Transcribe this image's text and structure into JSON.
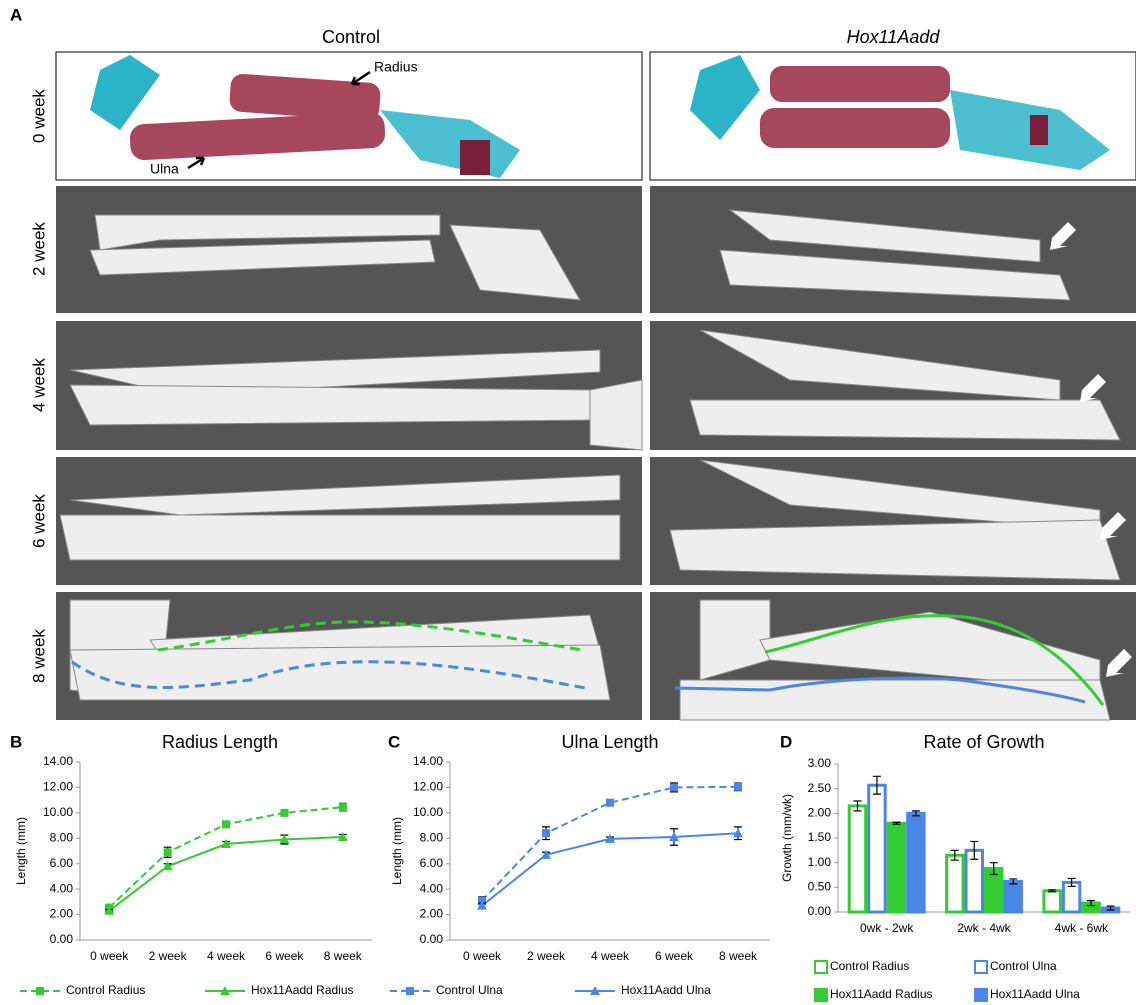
{
  "panel_a": {
    "label": "A",
    "columns": [
      "Control",
      "Hox11Aadd"
    ],
    "rows": [
      "0 week",
      "2 week",
      "4 week",
      "6 week",
      "8 week"
    ],
    "annotations": [
      "Radius",
      "Ulna"
    ]
  },
  "chart_data": [
    {
      "type": "line",
      "panel": "B",
      "title": "Radius Length",
      "y_label": "Length (mm)",
      "categories": [
        "0 week",
        "2 week",
        "4 week",
        "6 week",
        "8 week"
      ],
      "ylim": [
        0,
        14
      ],
      "yticks": [
        {
          "value": 0,
          "label": "0.00"
        },
        {
          "value": 2,
          "label": "2.00"
        },
        {
          "value": 4,
          "label": "4.00"
        },
        {
          "value": 6,
          "label": "6.00"
        },
        {
          "value": 8,
          "label": "8.00"
        },
        {
          "value": 10,
          "label": "10.00"
        },
        {
          "value": 12,
          "label": "12.00"
        },
        {
          "value": 14,
          "label": "14.00"
        }
      ],
      "series": [
        {
          "name": "Control Radius",
          "color": "#33cc33",
          "dash": true,
          "marker": "square",
          "values": [
            2.55,
            6.9,
            9.1,
            10.0,
            10.45
          ],
          "errors": [
            0.1,
            0.4,
            0.15,
            0.15,
            0.3
          ]
        },
        {
          "name": "Hox11Aadd Radius",
          "color": "#33cc33",
          "dash": false,
          "marker": "triangle",
          "values": [
            2.3,
            5.8,
            7.55,
            7.9,
            8.1
          ],
          "errors": [
            0.1,
            0.2,
            0.2,
            0.35,
            0.2
          ]
        }
      ]
    },
    {
      "type": "line",
      "panel": "C",
      "title": "Ulna Length",
      "y_label": "Length (mm)",
      "categories": [
        "0 week",
        "2 week",
        "4 week",
        "6 week",
        "8 week"
      ],
      "ylim": [
        0,
        14
      ],
      "yticks": [
        {
          "value": 0,
          "label": "0.00"
        },
        {
          "value": 2,
          "label": "2.00"
        },
        {
          "value": 4,
          "label": "4.00"
        },
        {
          "value": 6,
          "label": "6.00"
        },
        {
          "value": 8,
          "label": "8.00"
        },
        {
          "value": 10,
          "label": "10.00"
        },
        {
          "value": 12,
          "label": "12.00"
        },
        {
          "value": 14,
          "label": "14.00"
        }
      ],
      "series": [
        {
          "name": "Control Ulna",
          "color": "#4a86e8",
          "dash": true,
          "marker": "square",
          "values": [
            3.1,
            8.4,
            10.8,
            12.0,
            12.05
          ],
          "errors": [
            0.3,
            0.5,
            0.15,
            0.35,
            0.3
          ]
        },
        {
          "name": "Hox11Aadd Ulna",
          "color": "#4a86e8",
          "dash": false,
          "marker": "triangle",
          "values": [
            2.7,
            6.7,
            7.95,
            8.1,
            8.4
          ],
          "errors": [
            0.2,
            0.2,
            0.15,
            0.65,
            0.5
          ]
        }
      ]
    },
    {
      "type": "bar",
      "panel": "D",
      "title": "Rate of Growth",
      "y_label": "Growth (mm/wk)",
      "categories": [
        "0wk - 2wk",
        "2wk - 4wk",
        "4wk - 6wk"
      ],
      "ylim": [
        0,
        3
      ],
      "yticks": [
        {
          "value": 0,
          "label": "0.00"
        },
        {
          "value": 0.5,
          "label": "0.50"
        },
        {
          "value": 1,
          "label": "1.00"
        },
        {
          "value": 1.5,
          "label": "1.50"
        },
        {
          "value": 2,
          "label": "2.00"
        },
        {
          "value": 2.5,
          "label": "2.50"
        },
        {
          "value": 3,
          "label": "3.00"
        }
      ],
      "series": [
        {
          "name": "Control Radius",
          "color": "#33cc33",
          "filled": false,
          "values": [
            2.15,
            1.15,
            0.43
          ],
          "errors": [
            0.1,
            0.1,
            0.02
          ]
        },
        {
          "name": "Control Ulna",
          "color": "#4a86e8",
          "filled": false,
          "values": [
            2.57,
            1.25,
            0.6
          ],
          "errors": [
            0.18,
            0.18,
            0.08
          ]
        },
        {
          "name": "Hox11Aadd Radius",
          "color": "#33cc33",
          "filled": true,
          "values": [
            1.8,
            0.88,
            0.18
          ],
          "errors": [
            0.02,
            0.12,
            0.05
          ]
        },
        {
          "name": "Hox11Aadd Ulna",
          "color": "#4a86e8",
          "filled": true,
          "values": [
            2.0,
            0.62,
            0.08
          ],
          "errors": [
            0.05,
            0.05,
            0.04
          ]
        }
      ]
    }
  ]
}
